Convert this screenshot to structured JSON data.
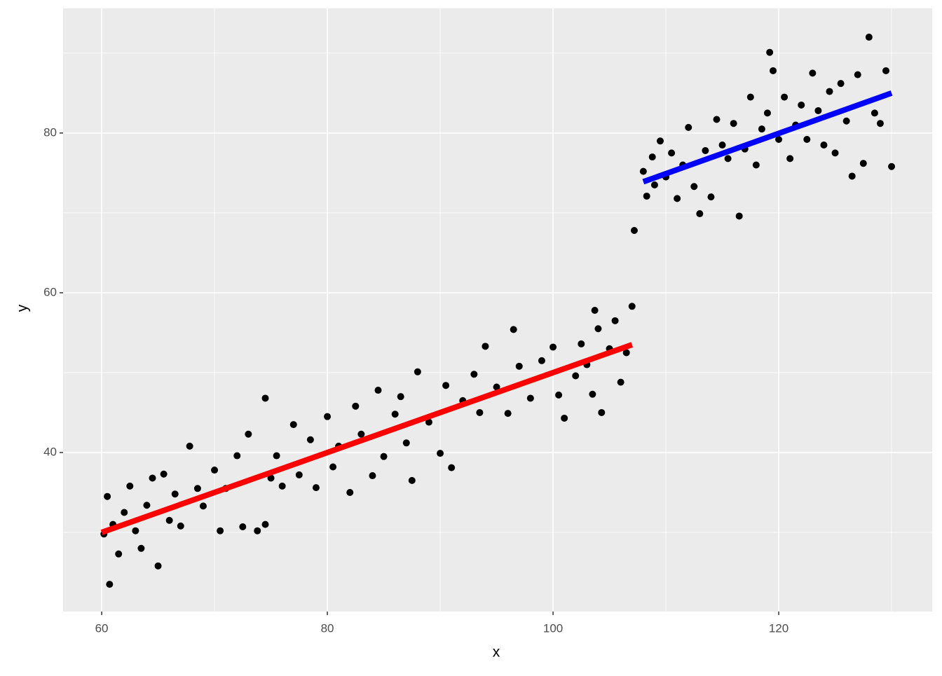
{
  "chart_data": {
    "type": "scatter",
    "x_label": "x",
    "y_label": "y",
    "xlim": [
      56.58,
      133.6
    ],
    "ylim": [
      20.09,
      95.6
    ],
    "xticks": [
      60,
      80,
      100,
      120
    ],
    "yticks": [
      40,
      60,
      80
    ],
    "x_minor_gridlines": [
      70,
      90,
      110,
      130
    ],
    "y_minor_gridlines": [
      30,
      50,
      70,
      90
    ],
    "grid": true,
    "background": "#ebebeb",
    "series": [
      {
        "type": "scatter",
        "color": "#000000",
        "x": [
          60.2,
          60.5,
          61,
          61.5,
          62,
          62.5,
          63,
          63.5,
          64,
          64.5,
          65.5,
          66,
          66.5,
          67,
          67.8,
          68.5,
          69,
          70,
          70.5,
          71,
          72,
          72.5,
          73,
          73.8,
          74.5,
          75,
          75.5,
          76,
          77,
          77.5,
          78.5,
          79,
          80,
          80.5,
          81,
          82,
          82.5,
          83,
          84,
          84.5,
          85,
          86,
          86.5,
          87,
          87.5,
          88,
          89,
          90,
          90.5,
          91,
          92,
          93,
          93.5,
          94,
          95,
          96,
          96.5,
          97,
          98,
          99,
          100,
          100.5,
          101,
          102,
          102.5,
          103,
          103.5,
          104,
          105,
          105.5,
          106,
          106.5,
          60.7,
          65,
          74.5,
          103.7,
          104.3,
          107,
          107.2,
          108,
          108.3,
          108.8,
          109,
          109.5,
          110,
          110.5,
          111,
          111.5,
          112,
          112.5,
          113,
          113.5,
          114,
          114.5,
          115,
          115.5,
          116,
          116.5,
          117,
          117.5,
          118,
          118.5,
          119,
          119.2,
          119.5,
          120,
          120.5,
          121,
          121.5,
          122,
          122.5,
          123,
          123.5,
          124,
          124.5,
          125,
          125.5,
          126,
          126.5,
          127,
          127.5,
          128,
          128.5,
          129,
          129.5,
          130
        ],
        "values": [
          29.8,
          34.5,
          31,
          27.3,
          32.5,
          35.8,
          30.2,
          28,
          33.4,
          36.8,
          37.3,
          31.5,
          34.8,
          30.8,
          40.8,
          35.5,
          33.3,
          37.8,
          30.2,
          35.5,
          39.6,
          30.7,
          42.3,
          30.2,
          31,
          36.8,
          39.6,
          35.8,
          43.5,
          37.2,
          41.6,
          35.6,
          44.5,
          38.2,
          40.8,
          35,
          45.8,
          42.3,
          37.1,
          47.8,
          39.5,
          44.8,
          47,
          41.2,
          36.5,
          50.1,
          43.8,
          39.9,
          48.4,
          38.1,
          46.5,
          49.8,
          45,
          53.3,
          48.2,
          44.9,
          55.4,
          50.8,
          46.8,
          51.5,
          53.2,
          47.2,
          44.3,
          49.6,
          53.6,
          51,
          47.3,
          55.5,
          53,
          56.5,
          48.8,
          52.5,
          23.5,
          25.8,
          46.8,
          57.8,
          45,
          58.3,
          67.8,
          75.2,
          72.1,
          77,
          73.5,
          79,
          74.5,
          77.5,
          71.8,
          76,
          80.7,
          73.3,
          69.9,
          77.8,
          72,
          81.7,
          78.5,
          76.8,
          81.2,
          69.6,
          78,
          84.5,
          76,
          80.5,
          82.5,
          90.1,
          87.8,
          79.2,
          84.5,
          76.8,
          81,
          83.5,
          79.2,
          87.5,
          82.8,
          78.5,
          85.2,
          77.5,
          86.2,
          81.5,
          74.6,
          87.3,
          76.2,
          92,
          82.5,
          81.2,
          87.8,
          75.8
        ]
      },
      {
        "type": "line",
        "color": "#ff0000",
        "x": [
          60,
          107
        ],
        "values": [
          30.0,
          53.5
        ]
      },
      {
        "type": "line",
        "color": "#0000ff",
        "x": [
          108,
          130
        ],
        "values": [
          73.9,
          85.0
        ]
      }
    ]
  }
}
